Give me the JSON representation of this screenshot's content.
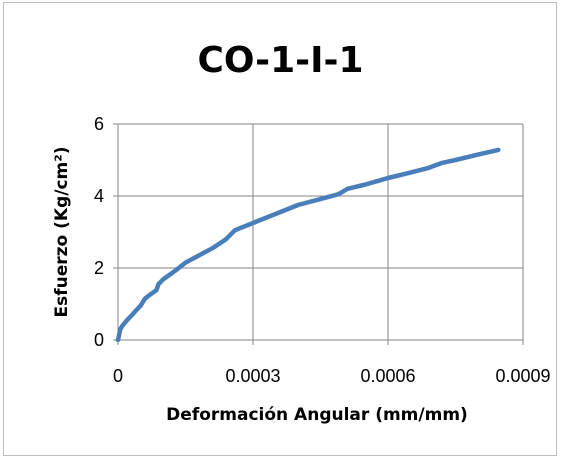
{
  "chart_data": {
    "type": "line",
    "title": "CO-1-I-1",
    "xlabel": "Deformación Angular (mm/mm)",
    "ylabel": "Esfuerzo (Kg/cm²)",
    "xlim": [
      0,
      0.0009
    ],
    "ylim": [
      0,
      6
    ],
    "xticks": [
      0,
      0.0003,
      0.0006,
      0.0009
    ],
    "xtick_labels": [
      "0",
      "0.0003",
      "0.0006",
      "0.0009"
    ],
    "yticks": [
      0,
      2,
      4,
      6
    ],
    "ytick_labels": [
      "0",
      "2",
      "4",
      "6"
    ],
    "grid": true,
    "legend": false,
    "series": [
      {
        "color": "#4a7ebb",
        "x": [
          0,
          5e-06,
          1e-05,
          2e-05,
          3e-05,
          4e-05,
          5e-05,
          6e-05,
          7e-05,
          8.5e-05,
          9e-05,
          0.0001,
          0.00013,
          0.00015,
          0.00018,
          0.00021,
          0.00024,
          0.00026,
          0.0003,
          0.00035,
          0.0004,
          0.00046,
          0.00049,
          0.00051,
          0.00055,
          0.0006,
          0.00065,
          0.00069,
          0.00072,
          0.00075,
          0.0008,
          0.000845
        ],
        "y": [
          0.0,
          0.3,
          0.4,
          0.55,
          0.68,
          0.82,
          0.95,
          1.15,
          1.25,
          1.38,
          1.55,
          1.68,
          1.95,
          2.15,
          2.35,
          2.55,
          2.8,
          3.05,
          3.25,
          3.5,
          3.75,
          3.95,
          4.05,
          4.2,
          4.32,
          4.5,
          4.65,
          4.78,
          4.92,
          5.0,
          5.15,
          5.28
        ]
      }
    ]
  }
}
